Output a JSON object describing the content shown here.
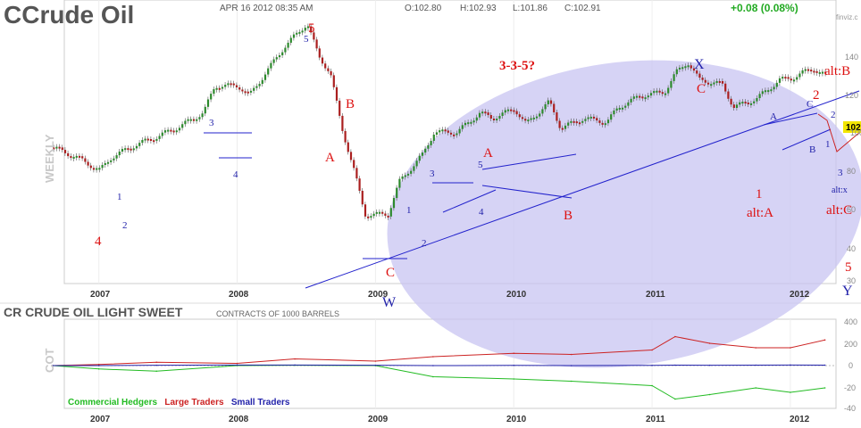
{
  "header": {
    "symbol": "C",
    "name": "Crude Oil",
    "datetime": "APR 16 2012 08:35 AM",
    "open": "O:102.80",
    "high": "H:102.93",
    "low": "L:101.86",
    "close": "C:102.91",
    "change": "+0.08 (0.08%)",
    "watermark": "finviz.c"
  },
  "price_panel": {
    "side_label": "WEEKLY",
    "price_tag": "102",
    "y_ticks": [
      "140",
      "120",
      "100",
      "80",
      "60",
      "40",
      "30"
    ]
  },
  "cot_panel": {
    "title": "CR CRUDE OIL LIGHT SWEET",
    "subtitle": "CONTRACTS OF 1000 BARRELS",
    "side_label": "COT",
    "y_ticks": [
      "400",
      "200",
      "0",
      "-20",
      "-40"
    ],
    "legend": [
      {
        "label": "Commercial Hedgers",
        "color": "#22bb22"
      },
      {
        "label": "Large Traders",
        "color": "#cc2222"
      },
      {
        "label": "Small Traders",
        "color": "#2222aa"
      }
    ]
  },
  "x_ticks": [
    "2007",
    "2008",
    "2009",
    "2010",
    "2011",
    "2012"
  ],
  "annotations": {
    "red": [
      "5",
      "B",
      "A",
      "C",
      "4",
      "A",
      "B",
      "C",
      "2",
      "1",
      "alt:A",
      "alt:B",
      "alt:C",
      "5",
      "3-3-5?"
    ],
    "blue": [
      "1",
      "2",
      "3",
      "4",
      "5",
      "1",
      "2",
      "3",
      "4",
      "5",
      "X",
      "W",
      "Y",
      "A",
      "B",
      "C",
      "1",
      "2",
      "3",
      "alt:x"
    ]
  },
  "chart_data": [
    {
      "type": "line",
      "title": "Crude Oil",
      "xlabel": "",
      "ylabel": "",
      "y_scale": "log",
      "ylim": [
        25,
        170
      ],
      "x_range": [
        "2006-09",
        "2012-04"
      ],
      "series": [
        {
          "name": "",
          "x": [
            "2006-09",
            "2006-11",
            "2007-01",
            "2007-02",
            "2007-04",
            "2007-06",
            "2007-08",
            "2007-10",
            "2007-11",
            "2008-01",
            "2008-02",
            "2008-04",
            "2008-05",
            "2008-07",
            "2008-08",
            "2008-09",
            "2008-10",
            "2008-11",
            "2008-12",
            "2009-02",
            "2009-03",
            "2009-05",
            "2009-06",
            "2009-08",
            "2009-10",
            "2009-11",
            "2010-01",
            "2010-02",
            "2010-04",
            "2010-05",
            "2010-07",
            "2010-09",
            "2010-10",
            "2010-12",
            "2011-02",
            "2011-03",
            "2011-04",
            "2011-05",
            "2011-07",
            "2011-08",
            "2011-10",
            "2011-12",
            "2012-01",
            "2012-02",
            "2012-03",
            "2012-04"
          ],
          "values": [
            63,
            59,
            54,
            59,
            64,
            68,
            73,
            80,
            96,
            96,
            90,
            112,
            125,
            147,
            117,
            105,
            72,
            55,
            40,
            40,
            50,
            60,
            70,
            70,
            80,
            77,
            82,
            74,
            86,
            72,
            77,
            75,
            83,
            90,
            92,
            105,
            113,
            100,
            97,
            83,
            88,
            100,
            101,
            105,
            108,
            102.9
          ]
        }
      ]
    },
    {
      "type": "line",
      "title": "CR CRUDE OIL LIGHT SWEET",
      "xlabel": "",
      "ylabel": "COT",
      "ylim": [
        -40,
        400
      ],
      "x_range": [
        "2006-09",
        "2012-04"
      ],
      "series": [
        {
          "name": "Commercial Hedgers",
          "x": [
            "2006-09",
            "2007-01",
            "2007-06",
            "2008-01",
            "2008-06",
            "2009-01",
            "2009-06",
            "2010-01",
            "2010-06",
            "2011-01",
            "2011-03",
            "2011-06",
            "2011-10",
            "2012-01",
            "2012-04"
          ],
          "values": [
            0,
            -3,
            -5,
            0,
            3,
            0,
            -10,
            -12,
            -14,
            -18,
            -30,
            -26,
            -20,
            -24,
            -20
          ]
        },
        {
          "name": "Large Traders",
          "x": [
            "2006-09",
            "2007-01",
            "2007-06",
            "2008-01",
            "2008-06",
            "2009-01",
            "2009-06",
            "2010-01",
            "2010-06",
            "2011-01",
            "2011-03",
            "2011-06",
            "2011-10",
            "2012-01",
            "2012-04"
          ],
          "values": [
            0,
            10,
            30,
            20,
            60,
            40,
            80,
            110,
            100,
            140,
            260,
            200,
            160,
            160,
            230
          ]
        },
        {
          "name": "Small Traders",
          "x": [
            "2006-09",
            "2007-01",
            "2007-06",
            "2008-01",
            "2008-06",
            "2009-01",
            "2009-06",
            "2010-01",
            "2010-06",
            "2011-01",
            "2011-03",
            "2011-06",
            "2011-10",
            "2012-01",
            "2012-04"
          ],
          "values": [
            0,
            0,
            3,
            5,
            5,
            3,
            0,
            2,
            0,
            2,
            4,
            3,
            4,
            5,
            4
          ]
        }
      ]
    }
  ]
}
